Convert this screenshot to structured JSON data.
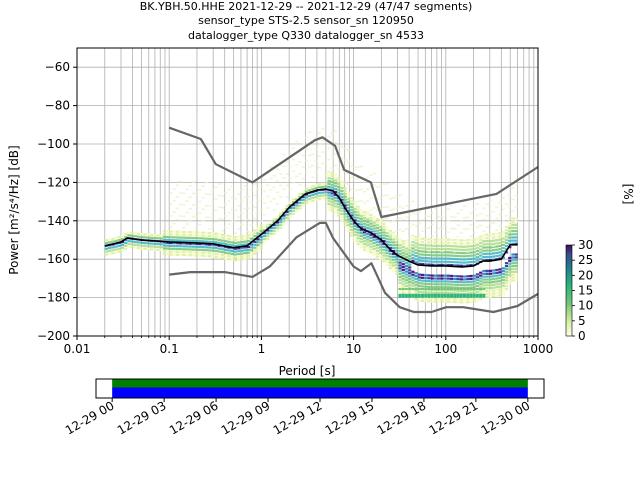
{
  "header": {
    "line1": "BK.YBH.50.HHE   2021-12-29 -- 2021-12-29  (47/47 segments)",
    "line2": "sensor_type STS-2.5 sensor_sn 120950",
    "line3": "datalogger_type Q330 datalogger_sn 4533"
  },
  "colors": {
    "grid": "#b0b0b0",
    "model": "#666666",
    "mode": "#000000",
    "timeline_green": "#008000",
    "timeline_blue": "#0000ff"
  },
  "chart_data": [
    {
      "type": "heatmap",
      "x_scale": "log",
      "xlabel": "Period [s]",
      "ylabel": "Power [m²/s⁴/Hz] [dB]",
      "xlim": [
        0.01,
        1000
      ],
      "ylim": [
        -200,
        -50
      ],
      "x_ticks": [
        "0.01",
        "0.1",
        "1",
        "10",
        "100",
        "1000"
      ],
      "y_ticks": [
        "−60",
        "−80",
        "−100",
        "−120",
        "−140",
        "−160",
        "−180",
        "−200"
      ],
      "grid": true,
      "colorbar": {
        "label": "[%]",
        "ticks": [
          "0",
          "5",
          "10",
          "15",
          "20",
          "25",
          "30"
        ],
        "range": [
          0,
          30
        ]
      },
      "series": [
        {
          "role": "high-noise-model",
          "x": [
            0.1,
            0.22,
            0.32,
            0.8,
            3.8,
            4.6,
            6.3,
            7.9,
            15.4,
            20,
            354.8,
            1000
          ],
          "y": [
            -91.5,
            -97.4,
            -110.5,
            -120,
            -98,
            -96.5,
            -101,
            -113.5,
            -120,
            -138,
            -126,
            -112
          ]
        },
        {
          "role": "low-noise-model",
          "x": [
            0.1,
            0.17,
            0.4,
            0.8,
            1.24,
            2.4,
            4.3,
            5,
            6,
            10,
            12,
            15.6,
            21.9,
            31.6,
            45,
            70,
            101,
            154,
            328,
            600,
            1000
          ],
          "y": [
            -168,
            -166.7,
            -166.7,
            -169.2,
            -163.7,
            -148.6,
            -141.1,
            -141.1,
            -149,
            -163.8,
            -166.2,
            -162.1,
            -177.5,
            -185,
            -187.5,
            -187.5,
            -185,
            -185,
            -187.5,
            -184.4,
            -178
          ]
        },
        {
          "role": "mode",
          "x": [
            0.02,
            0.025,
            0.03,
            0.035,
            0.05,
            0.1,
            0.2,
            0.3,
            0.5,
            0.7,
            1,
            1.5,
            2,
            3,
            4,
            5,
            6,
            7,
            8,
            10,
            12,
            15,
            20,
            25,
            30,
            40,
            50,
            70,
            100,
            150,
            200,
            250,
            300,
            400,
            500,
            600
          ],
          "y": [
            -153,
            -152,
            -151,
            -149,
            -150,
            -151,
            -151.5,
            -152,
            -154,
            -153,
            -147,
            -140,
            -133,
            -126,
            -124,
            -123.5,
            -124.5,
            -128,
            -133,
            -140,
            -144,
            -146,
            -150,
            -155,
            -158,
            -161,
            -163,
            -163.5,
            -163.5,
            -164,
            -163.5,
            -161,
            -161,
            -160,
            -152.5,
            -152.5
          ]
        }
      ]
    },
    {
      "type": "bar",
      "role": "segment-timeline",
      "xlim": [
        "2021-12-28 23:04",
        "2021-12-30 00:56"
      ],
      "x_ticks": [
        "12-29 00",
        "12-29 03",
        "12-29 06",
        "12-29 09",
        "12-29 12",
        "12-29 15",
        "12-29 18",
        "12-29 21",
        "12-30 00"
      ],
      "coverage": [
        {
          "start": "2021-12-29 00:00",
          "end": "2021-12-30 00:00"
        }
      ]
    }
  ]
}
